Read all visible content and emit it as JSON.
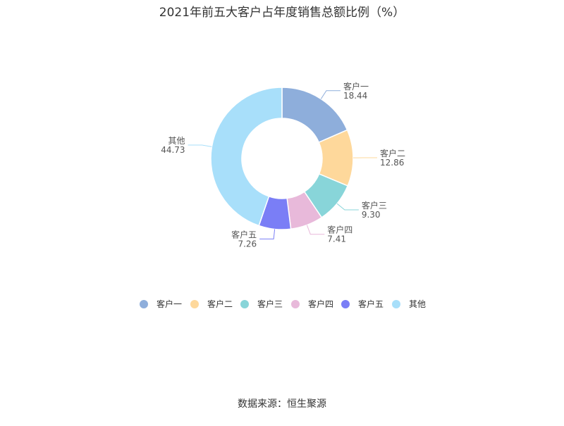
{
  "chart_data": {
    "type": "pie",
    "variant": "donut",
    "title": "2021年前五大客户占年度销售总额比例（%）",
    "categories": [
      "客户一",
      "客户二",
      "客户三",
      "客户四",
      "客户五",
      "其他"
    ],
    "values": [
      18.44,
      12.86,
      9.3,
      7.41,
      7.26,
      44.73
    ],
    "value_labels": [
      "18.44",
      "12.86",
      "9.30",
      "7.41",
      "7.26",
      "44.73"
    ],
    "colors": [
      "#8eaedb",
      "#fed89b",
      "#88d5d9",
      "#e8b9da",
      "#7a7ef6",
      "#a8dffa"
    ],
    "legend_position": "bottom"
  },
  "source": "数据来源：恒生聚源"
}
